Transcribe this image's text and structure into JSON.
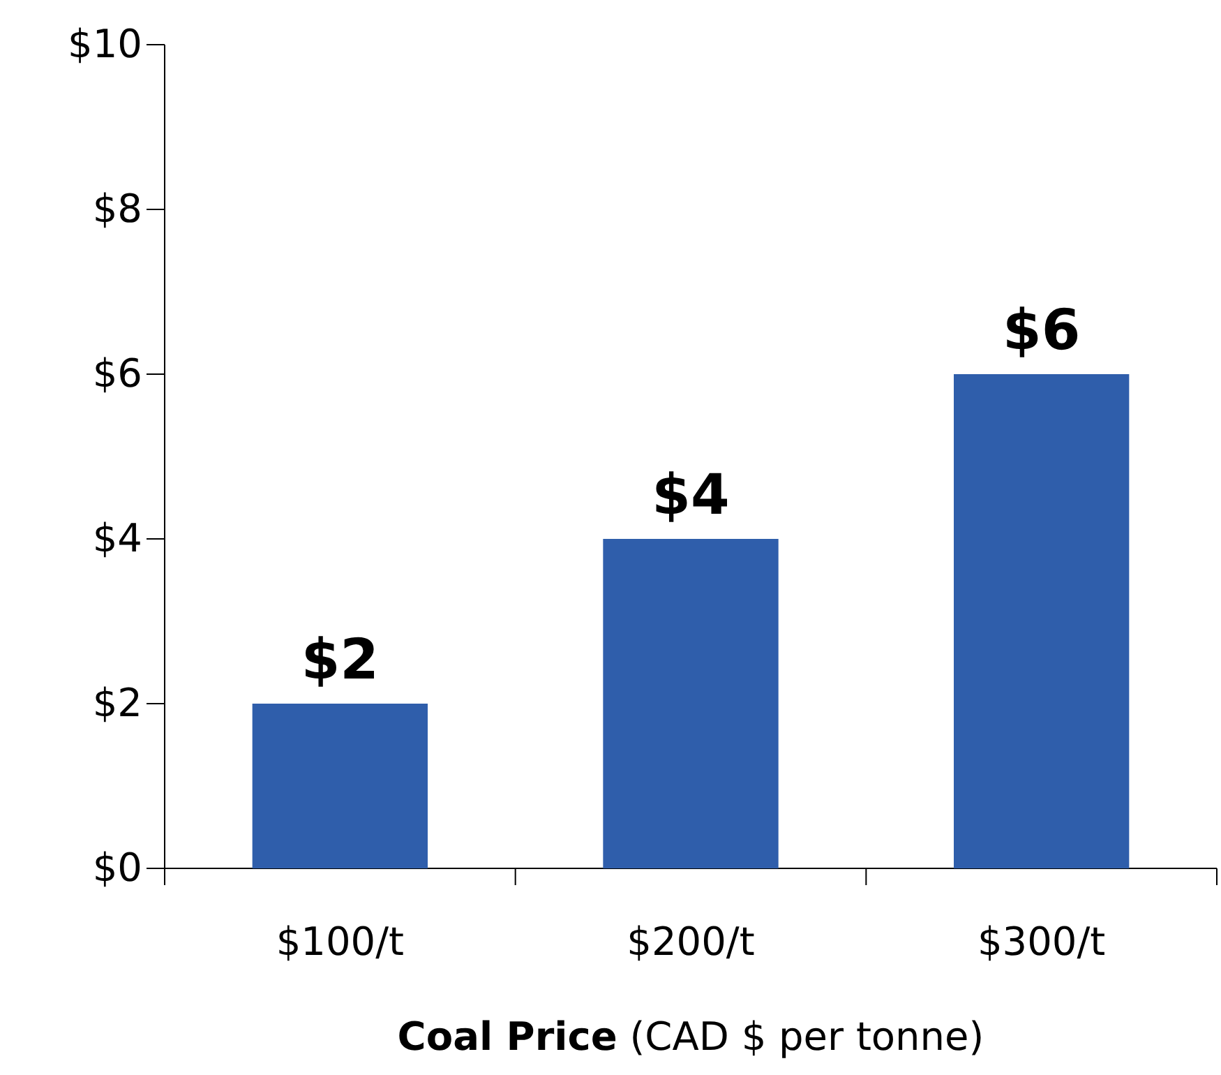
{
  "chart_data": {
    "type": "bar",
    "xlabel": "Coal Price (CAD $ per tonne)",
    "categories": [
      "$100/t",
      "$200/t",
      "$300/t"
    ],
    "values": [
      2,
      4,
      6
    ],
    "color": "#2f5eab",
    "value_labels": [
      "$2",
      "$4",
      "$6"
    ],
    "ylim": [
      0,
      10
    ],
    "yticks": [
      {
        "value": 0,
        "label": "$0"
      },
      {
        "value": 2,
        "label": "$2"
      },
      {
        "value": 4,
        "label": "$4"
      },
      {
        "value": 6,
        "label": "$6"
      },
      {
        "value": 8,
        "label": "$8"
      },
      {
        "value": 10,
        "label": "$10"
      }
    ],
    "grid": false
  }
}
